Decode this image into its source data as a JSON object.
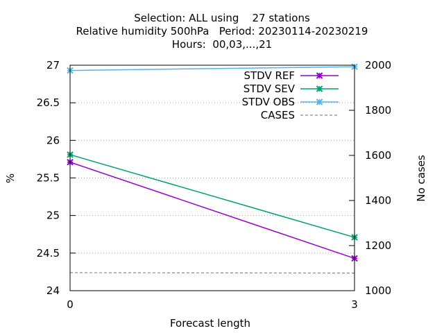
{
  "chart_data": {
    "type": "line",
    "title_lines": [
      "Selection: ALL using    27 stations",
      "Relative humidity 500hPa   Period: 20230114-20230219",
      "Hours:  00,03,...,21"
    ],
    "xlabel": "Forecast length",
    "ylabel": "%",
    "y2label": "No cases",
    "x": [
      0,
      3
    ],
    "x_ticks": [
      "0",
      "3"
    ],
    "xlim": [
      0,
      3
    ],
    "ylim": [
      24,
      27
    ],
    "y_ticks": [
      "24",
      "24.5",
      "25",
      "25.5",
      "26",
      "26.5",
      "27"
    ],
    "y2lim": [
      1000,
      2000
    ],
    "y2_ticks": [
      "1000",
      "1200",
      "1400",
      "1600",
      "1800",
      "2000"
    ],
    "grid": "horizontal dotted",
    "legend_position": "top-right",
    "series": [
      {
        "name": "STDV REF",
        "axis": "y",
        "color": "#9400d3",
        "style": "solid",
        "marker": "x",
        "values": [
          25.71,
          24.43
        ]
      },
      {
        "name": "STDV SEV",
        "axis": "y",
        "color": "#009e73",
        "style": "solid",
        "marker": "x",
        "values": [
          25.81,
          24.71
        ]
      },
      {
        "name": "STDV OBS",
        "axis": "y",
        "color": "#56b4e9",
        "style": "solid",
        "marker": "x",
        "values": [
          26.93,
          26.98
        ]
      },
      {
        "name": "CASES",
        "axis": "y2",
        "color": "#888888",
        "style": "dashed",
        "marker": "",
        "values": [
          1080,
          1078
        ]
      }
    ]
  }
}
